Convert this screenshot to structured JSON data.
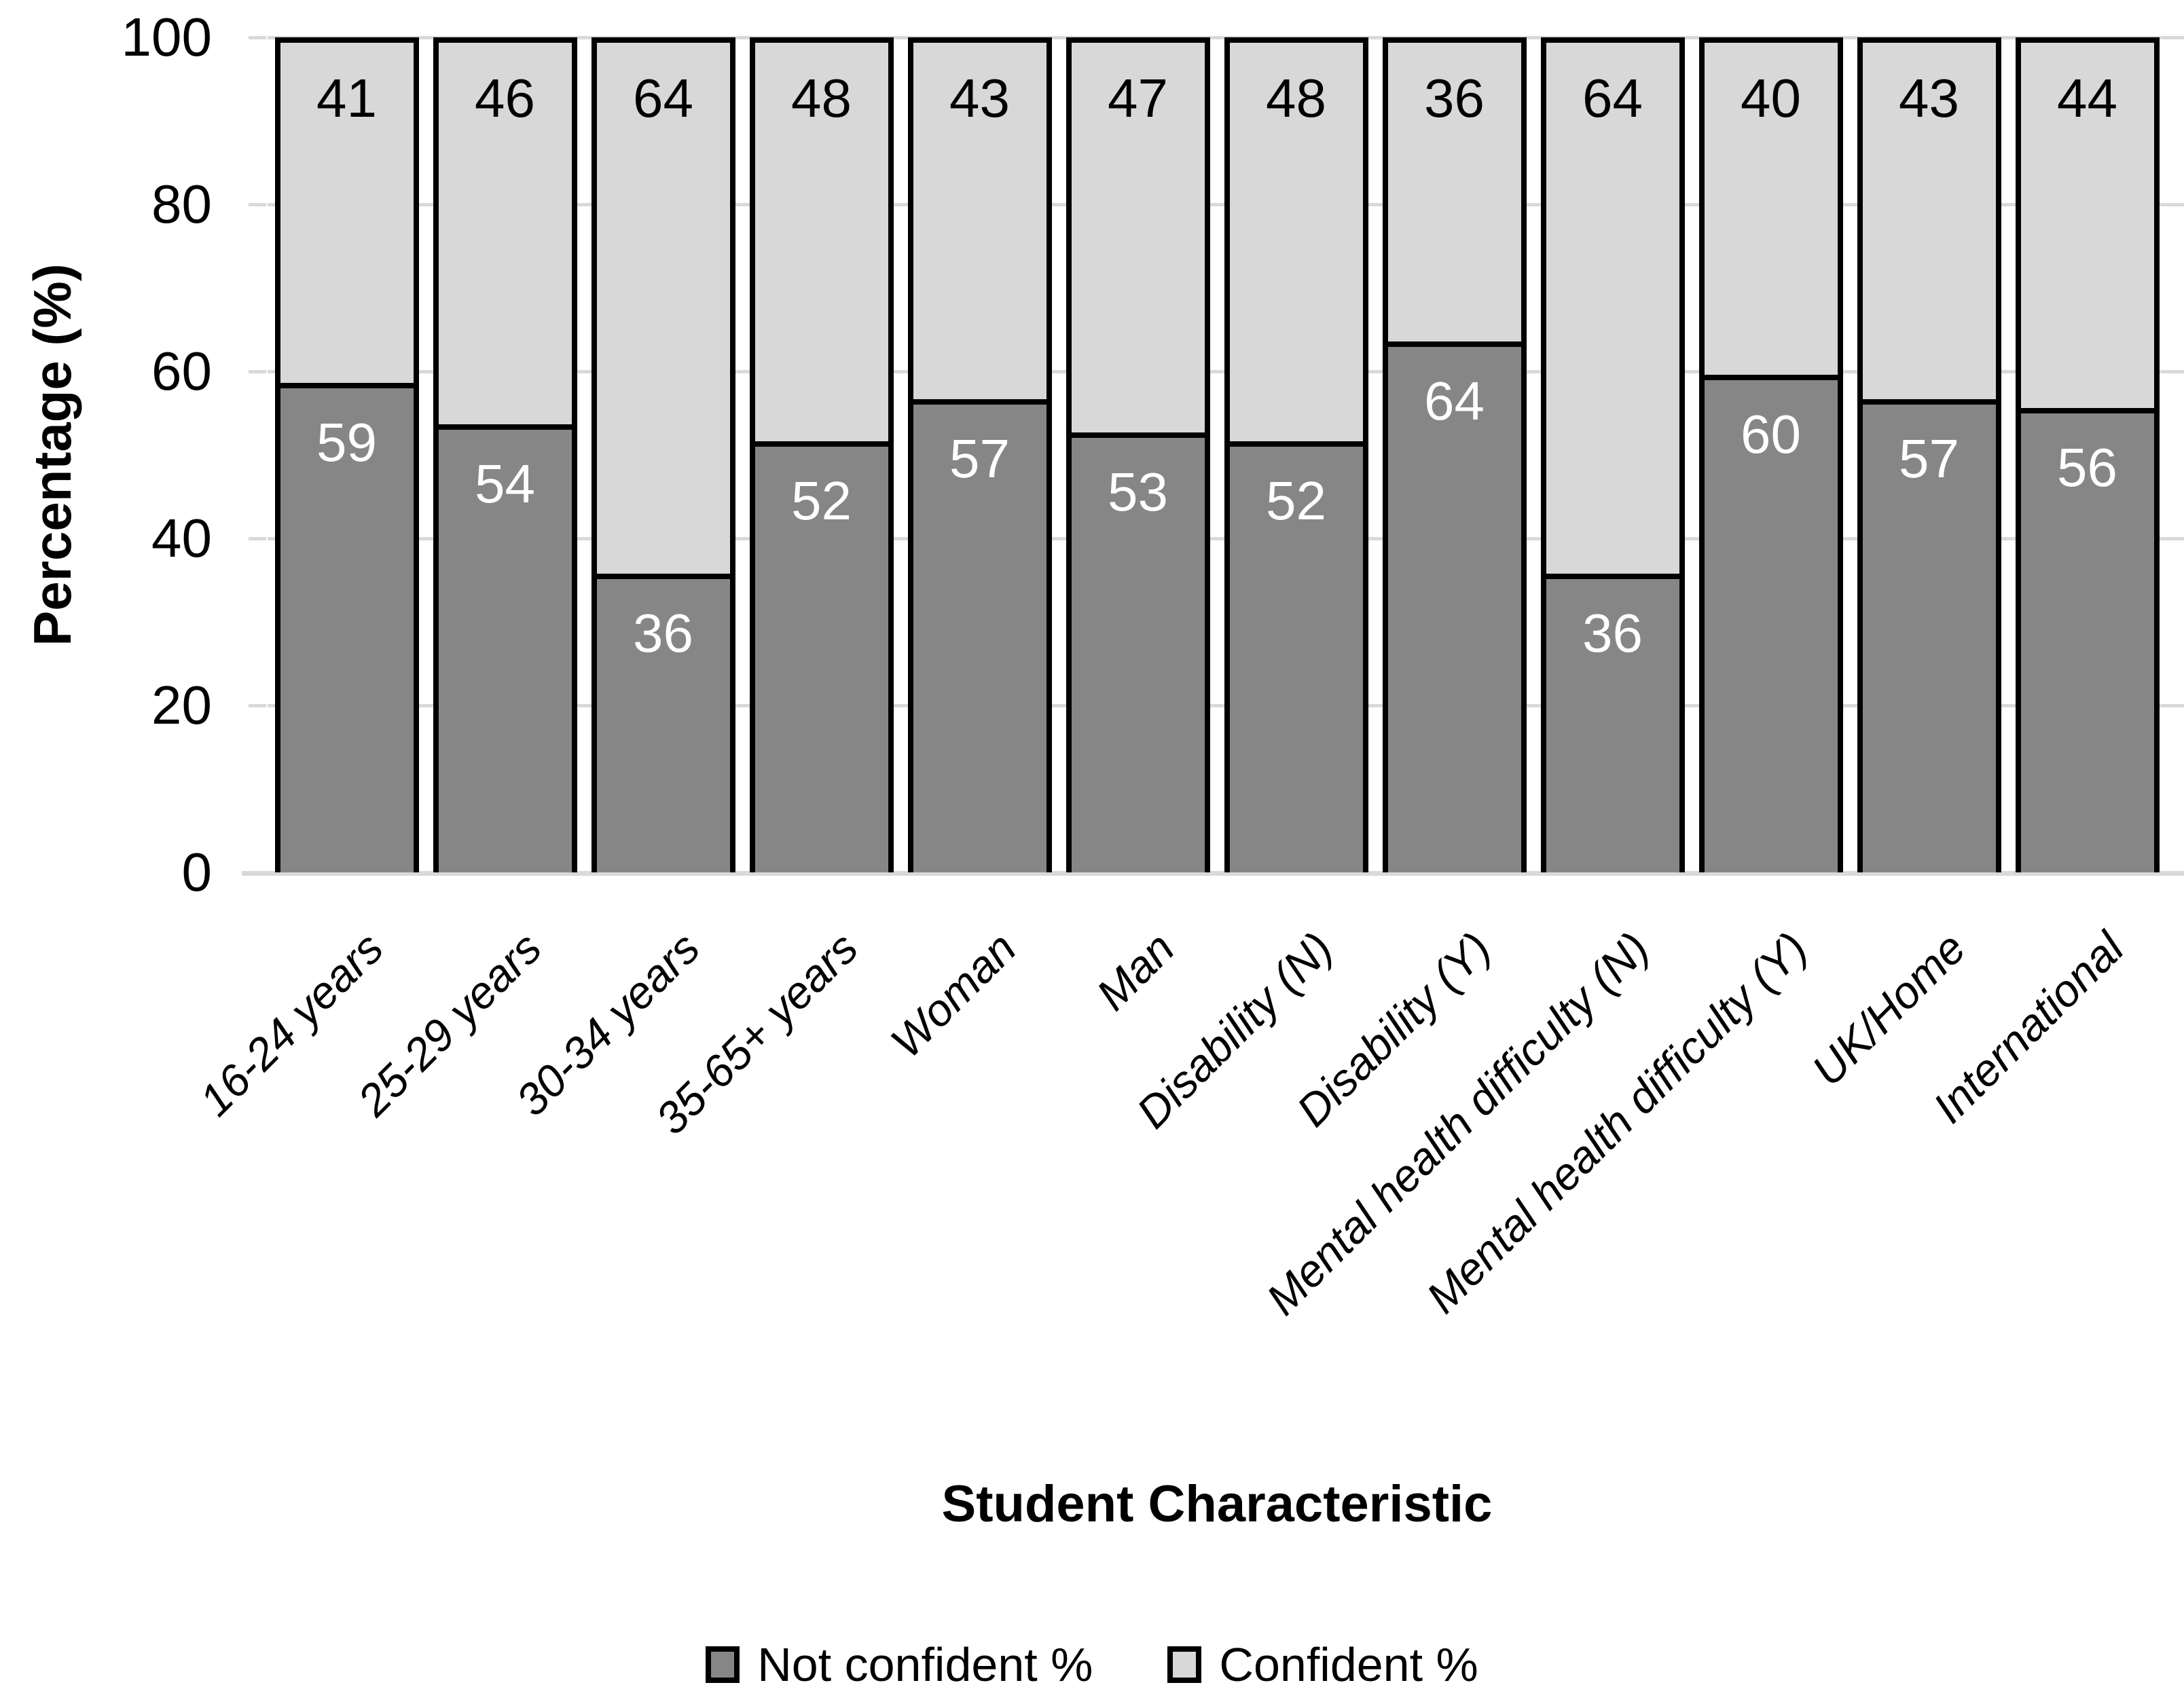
{
  "chart_data": {
    "type": "bar",
    "stacked": true,
    "orientation": "vertical",
    "title": "",
    "xlabel": "Student Characteristic",
    "ylabel": "Percentage (%)",
    "ylim": [
      0,
      100
    ],
    "yticks": [
      0,
      20,
      40,
      60,
      80,
      100
    ],
    "grid": true,
    "legend_position": "bottom",
    "categories": [
      "16-24 years",
      "25-29 years",
      "30-34 years",
      "35-65+ years",
      "Woman",
      "Man",
      "Disability (N)",
      "Disability (Y)",
      "Mental health difficulty (N)",
      "Mental health difficulty (Y)",
      "UK/Home",
      "International"
    ],
    "series": [
      {
        "name": "Not confident %",
        "color": "#868686",
        "label_color": "#FFFFFF",
        "values": [
          59,
          54,
          36,
          52,
          57,
          53,
          52,
          64,
          36,
          60,
          57,
          56
        ]
      },
      {
        "name": "Confident %",
        "color": "#D8D8D8",
        "label_color": "#000000",
        "values": [
          41,
          46,
          64,
          48,
          43,
          47,
          48,
          36,
          64,
          40,
          43,
          44
        ]
      }
    ]
  },
  "colors": {
    "bar_border": "#000000",
    "gridline": "#D9D9D9",
    "axis_line": "#D9D9D9",
    "text": "#000000",
    "background": "#FFFFFF"
  }
}
